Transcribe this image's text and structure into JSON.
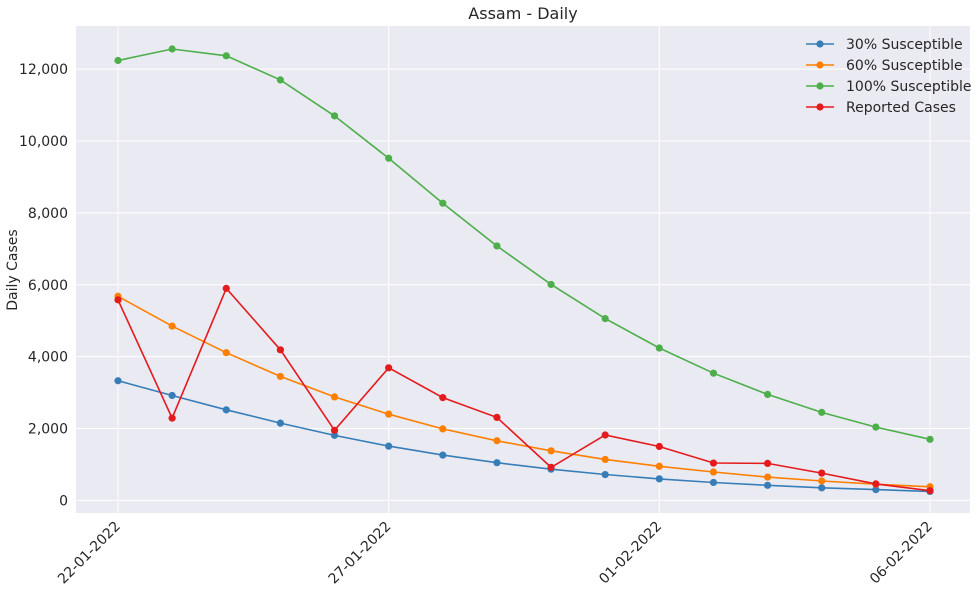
{
  "chart_data": {
    "type": "line",
    "title": "Assam - Daily",
    "xlabel": "",
    "ylabel": "Daily Cases",
    "x": [
      "22-01-2022",
      "23-01-2022",
      "24-01-2022",
      "25-01-2022",
      "26-01-2022",
      "27-01-2022",
      "28-01-2022",
      "29-01-2022",
      "30-01-2022",
      "31-01-2022",
      "01-02-2022",
      "02-02-2022",
      "03-02-2022",
      "04-02-2022",
      "05-02-2022",
      "06-02-2022"
    ],
    "x_tick_labels": [
      "22-01-2022",
      "27-01-2022",
      "01-02-2022",
      "06-02-2022"
    ],
    "ylim": [
      -350,
      13200
    ],
    "y_ticks": [
      0,
      2000,
      4000,
      6000,
      8000,
      10000,
      12000
    ],
    "y_tick_labels": [
      "0",
      "2,000",
      "4,000",
      "6,000",
      "8,000",
      "10,000",
      "12,000"
    ],
    "grid": true,
    "legend_position": "top-right",
    "series": [
      {
        "name": "30% Susceptible",
        "color": "#377eb8",
        "values": [
          3330,
          2920,
          2520,
          2150,
          1810,
          1510,
          1260,
          1050,
          870,
          720,
          600,
          500,
          420,
          350,
          300,
          250
        ]
      },
      {
        "name": "60% Susceptible",
        "color": "#ff7f00",
        "values": [
          5680,
          4850,
          4110,
          3450,
          2880,
          2400,
          1990,
          1660,
          1380,
          1140,
          950,
          790,
          650,
          540,
          450,
          380
        ]
      },
      {
        "name": "100% Susceptible",
        "color": "#4daf4a",
        "values": [
          12240,
          12560,
          12370,
          11700,
          10700,
          9520,
          8270,
          7080,
          6010,
          5060,
          4240,
          3540,
          2950,
          2450,
          2040,
          1700
        ]
      },
      {
        "name": "Reported Cases",
        "color": "#e41a1c",
        "values": [
          5580,
          2290,
          5900,
          4190,
          1950,
          3690,
          2860,
          2310,
          920,
          1820,
          1500,
          1040,
          1030,
          760,
          460,
          270
        ]
      }
    ]
  }
}
